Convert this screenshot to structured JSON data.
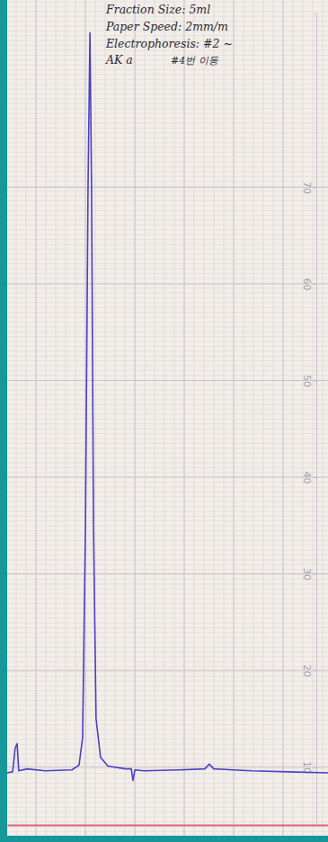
{
  "chart_data": {
    "type": "line",
    "annotations": [
      "Fraction Size: 5ml",
      "Paper Speed: 2mm/m",
      "Electrophoresis: #2 ~",
      "AK a",
      "#4번 이동"
    ],
    "x": [
      0,
      1.7,
      2.5,
      3.1,
      3.6,
      6.2,
      11.8,
      20.2,
      22.4,
      23.5,
      24.4,
      25.2,
      25.8,
      26.3,
      26.9,
      27.7,
      29.1,
      31.4,
      37.0,
      38.7,
      39.2,
      39.8,
      42.6,
      53.8,
      61.6,
      63.0,
      64.4,
      76.2,
      87.4,
      100
    ],
    "values": [
      9.4,
      9.5,
      12.0,
      12.4,
      9.6,
      9.8,
      9.6,
      9.7,
      10.2,
      13,
      35,
      70,
      86,
      70,
      35,
      15,
      11,
      10.1,
      9.8,
      9.8,
      8.6,
      9.7,
      9.6,
      9.7,
      9.8,
      10.3,
      9.8,
      9.6,
      9.5,
      9.4
    ],
    "color": "#4b3fc4",
    "xlim": [
      0,
      100
    ],
    "ylim": [
      4,
      88
    ],
    "yticks": [
      10,
      20,
      30,
      40,
      50,
      60,
      70
    ],
    "grid": true,
    "tick_labels": "y"
  }
}
